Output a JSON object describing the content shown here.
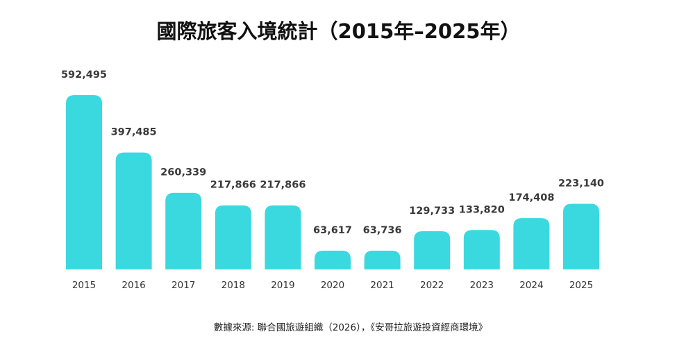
{
  "chart_data": {
    "type": "bar",
    "title": "國際旅客入境統計（2015年–2025年）",
    "xlabel": "",
    "ylabel": "",
    "categories": [
      "2015",
      "2016",
      "2017",
      "2018",
      "2019",
      "2020",
      "2021",
      "2022",
      "2023",
      "2024",
      "2025"
    ],
    "values": [
      592495,
      397485,
      260339,
      217866,
      217866,
      63617,
      63736,
      129733,
      133820,
      174408,
      223140
    ],
    "value_labels": [
      "592,495",
      "397,485",
      "260,339",
      "217,866",
      "217,866",
      "63,617",
      "63,736",
      "129,733",
      "133,820",
      "174,408",
      "223,140"
    ],
    "ylim": [
      0,
      600000
    ],
    "grid": false,
    "legend": "none",
    "bar_color": "#3ad9df",
    "source": "數據來源: 聯合國旅遊組織（2026），《安哥拉旅遊投資經商環境》"
  }
}
